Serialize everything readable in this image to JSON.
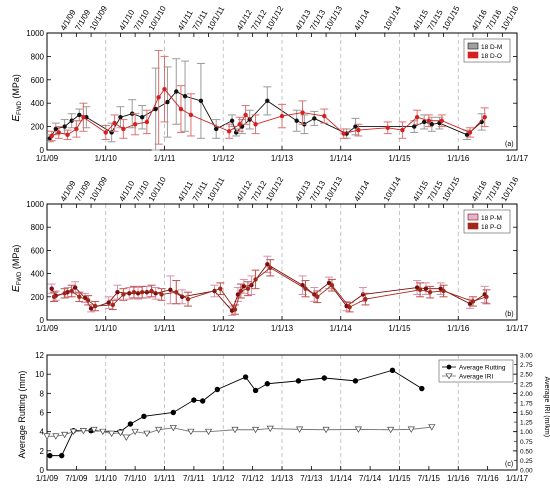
{
  "chart_data": [
    {
      "type": "scatter",
      "panel_label": "(a)",
      "ylabel_main": "E",
      "ylabel_sub": "FWD",
      "ylabel_unit": " (MPa)",
      "xlim": [
        2009.0,
        2017.0
      ],
      "ylim": [
        0,
        1000
      ],
      "yticks": [
        0,
        200,
        400,
        600,
        800,
        1000
      ],
      "xticks": [
        {
          "t": 2009.0,
          "label": "1/1/09"
        },
        {
          "t": 2010.0,
          "label": "1/1/10"
        },
        {
          "t": 2011.0,
          "label": "1/1/11"
        },
        {
          "t": 2012.0,
          "label": "1/1/12"
        },
        {
          "t": 2013.0,
          "label": "1/1/13"
        },
        {
          "t": 2014.0,
          "label": "1/1/14"
        },
        {
          "t": 2015.0,
          "label": "1/1/15"
        },
        {
          "t": 2016.0,
          "label": "1/1/16"
        },
        {
          "t": 2017.0,
          "label": "1/1/17"
        }
      ],
      "top_dates": [
        {
          "t": 2009.25,
          "label": "4/1/09"
        },
        {
          "t": 2009.5,
          "label": "7/1/09"
        },
        {
          "t": 2009.75,
          "label": "10/1/09"
        },
        {
          "t": 2010.25,
          "label": "4/1/10"
        },
        {
          "t": 2010.5,
          "label": "7/1/10"
        },
        {
          "t": 2010.75,
          "label": "10/1/10"
        },
        {
          "t": 2011.25,
          "label": "4/1/11"
        },
        {
          "t": 2011.5,
          "label": "7/1/11"
        },
        {
          "t": 2011.75,
          "label": "10/1/11"
        },
        {
          "t": 2012.25,
          "label": "4/1/12"
        },
        {
          "t": 2012.5,
          "label": "7/1/12"
        },
        {
          "t": 2012.75,
          "label": "10/1/12"
        },
        {
          "t": 2013.25,
          "label": "4/1/13"
        },
        {
          "t": 2013.5,
          "label": "7/1/13"
        },
        {
          "t": 2013.75,
          "label": "10/1/13"
        },
        {
          "t": 2014.25,
          "label": "4/1/14"
        },
        {
          "t": 2014.75,
          "label": "10/1/14"
        },
        {
          "t": 2015.25,
          "label": "4/1/15"
        },
        {
          "t": 2015.5,
          "label": "7/1/15"
        },
        {
          "t": 2015.75,
          "label": "10/1/15"
        },
        {
          "t": 2016.25,
          "label": "4/1/16"
        },
        {
          "t": 2016.5,
          "label": "7/1/16"
        },
        {
          "t": 2016.75,
          "label": "10/1/16"
        }
      ],
      "dashed_years": [
        2010.0,
        2011.0,
        2012.0,
        2013.0,
        2014.0,
        2015.0,
        2016.0
      ],
      "series": [
        {
          "name": "18 D-M",
          "color": "#111111",
          "err_color": "#9a9a9a",
          "x": [
            2009.05,
            2009.15,
            2009.3,
            2009.42,
            2009.55,
            2009.67,
            2010.1,
            2010.25,
            2010.45,
            2010.62,
            2010.85,
            2011.05,
            2011.2,
            2011.35,
            2011.62,
            2011.88,
            2012.15,
            2012.22,
            2012.32,
            2012.45,
            2012.75,
            2013.25,
            2013.38,
            2013.55,
            2014.1,
            2014.25,
            2015.25,
            2015.42,
            2015.55,
            2015.68,
            2016.15,
            2016.4
          ],
          "y": [
            100,
            180,
            200,
            250,
            300,
            280,
            150,
            280,
            310,
            280,
            350,
            410,
            500,
            460,
            420,
            180,
            250,
            150,
            200,
            260,
            420,
            250,
            220,
            270,
            140,
            200,
            200,
            240,
            220,
            230,
            130,
            240
          ],
          "err": [
            30,
            50,
            60,
            60,
            50,
            90,
            80,
            90,
            120,
            100,
            350,
            300,
            280,
            300,
            320,
            80,
            50,
            30,
            60,
            80,
            120,
            90,
            80,
            60,
            40,
            70,
            50,
            60,
            60,
            50,
            40,
            70
          ]
        },
        {
          "name": "18 D-O",
          "color": "#d42020",
          "err_color": "#e07070",
          "x": [
            2009.08,
            2009.2,
            2009.35,
            2009.5,
            2009.62,
            2010.0,
            2010.15,
            2010.3,
            2010.5,
            2010.7,
            2010.9,
            2011.0,
            2011.28,
            2011.45,
            2012.1,
            2012.28,
            2012.38,
            2012.55,
            2013.0,
            2013.35,
            2013.72,
            2014.05,
            2014.3,
            2014.8,
            2015.05,
            2015.3,
            2015.5,
            2015.72,
            2016.2,
            2016.45
          ],
          "y": [
            120,
            150,
            130,
            180,
            280,
            150,
            230,
            180,
            220,
            240,
            450,
            520,
            350,
            300,
            160,
            220,
            300,
            220,
            290,
            320,
            290,
            140,
            170,
            190,
            170,
            280,
            250,
            250,
            150,
            280
          ],
          "err": [
            40,
            50,
            40,
            70,
            120,
            60,
            70,
            80,
            90,
            100,
            400,
            280,
            200,
            180,
            60,
            60,
            80,
            80,
            100,
            100,
            60,
            40,
            50,
            50,
            70,
            60,
            50,
            50,
            40,
            80
          ]
        }
      ]
    },
    {
      "type": "scatter",
      "panel_label": "(b)",
      "ylabel_main": "E",
      "ylabel_sub": "FWD",
      "ylabel_unit": " (MPa)",
      "xlim": [
        2009.0,
        2017.0
      ],
      "ylim": [
        0,
        1000
      ],
      "yticks": [
        0,
        200,
        400,
        600,
        800,
        1000
      ],
      "xticks": [
        {
          "t": 2009.0,
          "label": "1/1/09"
        },
        {
          "t": 2010.0,
          "label": "1/1/10"
        },
        {
          "t": 2011.0,
          "label": "1/1/11"
        },
        {
          "t": 2012.0,
          "label": "1/1/12"
        },
        {
          "t": 2013.0,
          "label": "1/1/13"
        },
        {
          "t": 2014.0,
          "label": "1/1/14"
        },
        {
          "t": 2015.0,
          "label": "1/1/15"
        },
        {
          "t": 2016.0,
          "label": "1/1/16"
        },
        {
          "t": 2017.0,
          "label": "1/1/17"
        }
      ],
      "top_dates": [
        {
          "t": 2009.25,
          "label": "4/1/09"
        },
        {
          "t": 2009.5,
          "label": "7/1/09"
        },
        {
          "t": 2009.75,
          "label": "10/1/09"
        },
        {
          "t": 2010.25,
          "label": "4/1/10"
        },
        {
          "t": 2010.5,
          "label": "7/1/10"
        },
        {
          "t": 2010.75,
          "label": "10/1/10"
        },
        {
          "t": 2011.25,
          "label": "4/1/11"
        },
        {
          "t": 2011.5,
          "label": "7/1/11"
        },
        {
          "t": 2011.75,
          "label": "10/1/11"
        },
        {
          "t": 2012.25,
          "label": "4/1/12"
        },
        {
          "t": 2012.5,
          "label": "7/1/12"
        },
        {
          "t": 2012.75,
          "label": "10/1/12"
        },
        {
          "t": 2013.25,
          "label": "4/1/13"
        },
        {
          "t": 2013.5,
          "label": "7/1/13"
        },
        {
          "t": 2013.75,
          "label": "10/1/13"
        },
        {
          "t": 2014.25,
          "label": "4/1/14"
        },
        {
          "t": 2014.75,
          "label": "10/1/14"
        },
        {
          "t": 2015.25,
          "label": "4/1/15"
        },
        {
          "t": 2015.5,
          "label": "7/1/15"
        },
        {
          "t": 2015.75,
          "label": "10/1/15"
        },
        {
          "t": 2016.25,
          "label": "4/1/16"
        },
        {
          "t": 2016.5,
          "label": "7/1/16"
        },
        {
          "t": 2016.75,
          "label": "10/1/16"
        }
      ],
      "dashed_years": [
        2010.0,
        2011.0,
        2012.0,
        2013.0,
        2014.0,
        2015.0,
        2016.0
      ],
      "series": [
        {
          "name": "18 P-M",
          "color": "#7a0c0c",
          "err_color": "#d98fb0",
          "x": [
            2009.08,
            2009.15,
            2009.35,
            2009.48,
            2009.65,
            2009.75,
            2010.05,
            2010.2,
            2010.4,
            2010.55,
            2010.7,
            2010.85,
            2011.1,
            2011.3,
            2011.85,
            2012.15,
            2012.25,
            2012.35,
            2012.48,
            2012.75,
            2013.35,
            2013.55,
            2013.8,
            2014.1,
            2014.38,
            2015.3,
            2015.45,
            2015.7,
            2016.2,
            2016.45
          ],
          "y": [
            270,
            210,
            240,
            280,
            190,
            100,
            150,
            240,
            230,
            230,
            240,
            230,
            260,
            200,
            250,
            80,
            220,
            290,
            300,
            480,
            300,
            220,
            320,
            120,
            220,
            280,
            270,
            270,
            140,
            220
          ],
          "err": [
            40,
            40,
            40,
            50,
            40,
            30,
            50,
            60,
            50,
            50,
            50,
            50,
            120,
            60,
            50,
            40,
            60,
            60,
            80,
            70,
            80,
            60,
            50,
            40,
            60,
            60,
            50,
            50,
            40,
            70
          ]
        },
        {
          "name": "18 P-O",
          "color": "#a0281a",
          "err_color": "#c0504a",
          "x": [
            2009.12,
            2009.3,
            2009.42,
            2009.55,
            2009.7,
            2009.82,
            2010.12,
            2010.3,
            2010.48,
            2010.62,
            2010.78,
            2010.95,
            2011.2,
            2011.4,
            2011.95,
            2012.2,
            2012.3,
            2012.42,
            2012.55,
            2012.8,
            2013.4,
            2013.6,
            2013.85,
            2014.15,
            2014.42,
            2015.35,
            2015.52,
            2015.75,
            2016.25,
            2016.48
          ],
          "y": [
            200,
            230,
            250,
            200,
            170,
            120,
            130,
            220,
            240,
            240,
            250,
            220,
            240,
            180,
            270,
            90,
            250,
            270,
            350,
            450,
            270,
            200,
            300,
            110,
            180,
            260,
            240,
            250,
            160,
            200
          ],
          "err": [
            40,
            40,
            50,
            40,
            40,
            40,
            40,
            50,
            50,
            50,
            50,
            50,
            100,
            60,
            50,
            40,
            60,
            60,
            80,
            70,
            70,
            50,
            50,
            40,
            50,
            60,
            50,
            50,
            40,
            60
          ]
        }
      ]
    },
    {
      "type": "line",
      "panel_label": "(c)",
      "ylabel": "Average Rutting (mm)",
      "y2label": "Average IRI (m/km)",
      "xlim": [
        2009.0,
        2017.0
      ],
      "ylim": [
        0,
        12
      ],
      "y2lim": [
        0,
        3
      ],
      "yticks": [
        0,
        2,
        4,
        6,
        8,
        10,
        12
      ],
      "y2ticks": [
        "0.00",
        "0.25",
        "0.50",
        "0.75",
        "1.00",
        "1.25",
        "1.50",
        "1.75",
        "2.00",
        "2.25",
        "2.50",
        "2.75",
        "3.00"
      ],
      "xticks": [
        {
          "t": 2009.0,
          "label": "1/1/09"
        },
        {
          "t": 2009.5,
          "label": "7/1/09"
        },
        {
          "t": 2010.0,
          "label": "1/1/10"
        },
        {
          "t": 2010.5,
          "label": "7/1/10"
        },
        {
          "t": 2011.0,
          "label": "1/1/11"
        },
        {
          "t": 2011.5,
          "label": "7/1/11"
        },
        {
          "t": 2012.0,
          "label": "1/1/12"
        },
        {
          "t": 2012.5,
          "label": "7/1/12"
        },
        {
          "t": 2013.0,
          "label": "1/1/13"
        },
        {
          "t": 2013.5,
          "label": "7/1/13"
        },
        {
          "t": 2014.0,
          "label": "1/1/14"
        },
        {
          "t": 2014.5,
          "label": "7/1/14"
        },
        {
          "t": 2015.0,
          "label": "1/1/15"
        },
        {
          "t": 2015.5,
          "label": "7/1/15"
        },
        {
          "t": 2016.0,
          "label": "1/1/16"
        },
        {
          "t": 2016.5,
          "label": "7/1/16"
        },
        {
          "t": 2017.0,
          "label": "1/1/17"
        }
      ],
      "dashed_years": [
        2010.0,
        2011.0,
        2012.0,
        2013.0,
        2014.0,
        2015.0,
        2016.0
      ],
      "series": [
        {
          "name": "Average Rutting",
          "axis": "left",
          "marker": "circle",
          "x": [
            2009.05,
            2009.25,
            2009.45,
            2009.75,
            2010.25,
            2010.42,
            2010.65,
            2011.15,
            2011.5,
            2011.65,
            2011.9,
            2012.38,
            2012.55,
            2012.75,
            2013.28,
            2013.72,
            2014.25,
            2014.88,
            2015.38
          ],
          "y": [
            1.5,
            1.5,
            4.1,
            4.1,
            4.0,
            4.8,
            5.6,
            6.0,
            7.3,
            7.2,
            8.4,
            9.7,
            8.3,
            9.0,
            9.3,
            9.6,
            9.3,
            10.4,
            8.5
          ]
        },
        {
          "name": "Average IRI",
          "axis": "right",
          "marker": "triangle-down",
          "x": [
            2009.0,
            2009.15,
            2009.3,
            2009.45,
            2009.62,
            2009.8,
            2009.95,
            2010.1,
            2010.25,
            2010.35,
            2010.5,
            2010.7,
            2010.9,
            2011.15,
            2011.45,
            2011.75,
            2012.2,
            2012.55,
            2012.8,
            2013.3,
            2013.75,
            2014.3,
            2014.85,
            2015.2,
            2015.55
          ],
          "y": [
            0.88,
            0.88,
            0.92,
            1.0,
            1.02,
            1.05,
            1.0,
            0.95,
            0.97,
            0.85,
            1.0,
            0.95,
            1.05,
            1.1,
            1.0,
            1.0,
            1.05,
            1.05,
            1.08,
            1.06,
            1.05,
            1.06,
            1.05,
            1.06,
            1.12
          ]
        }
      ]
    }
  ]
}
